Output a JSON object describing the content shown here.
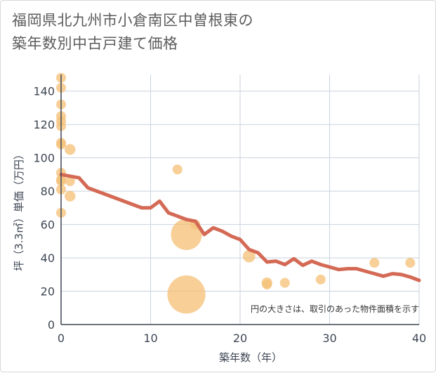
{
  "title": {
    "line1": "福岡県北九州市小倉南区中曽根東の",
    "line2": "築年数別中古戸建て価格"
  },
  "chart_data": {
    "type": "scatter",
    "xlabel": "築年数（年）",
    "ylabel": "坪（3.3㎡）単価（万円）",
    "xlim": [
      0,
      40
    ],
    "ylim": [
      0,
      150
    ],
    "x_ticks": [
      0,
      10,
      20,
      30,
      40
    ],
    "y_ticks": [
      0,
      20,
      40,
      60,
      80,
      100,
      120,
      140
    ],
    "grid": true,
    "note": "円の大きさは、取引のあった物件面積を示す",
    "colors": {
      "points": "#f5c27a",
      "line": "#d46a55",
      "grid": "#c9d3dd"
    },
    "points": [
      {
        "x": 0,
        "y": 148,
        "size": 1
      },
      {
        "x": 0,
        "y": 142,
        "size": 1
      },
      {
        "x": 0,
        "y": 132,
        "size": 1
      },
      {
        "x": 0,
        "y": 125,
        "size": 1
      },
      {
        "x": 0,
        "y": 122,
        "size": 1
      },
      {
        "x": 0,
        "y": 119,
        "size": 1
      },
      {
        "x": 0,
        "y": 109,
        "size": 1
      },
      {
        "x": 0,
        "y": 108,
        "size": 1
      },
      {
        "x": 0,
        "y": 91,
        "size": 1
      },
      {
        "x": 0,
        "y": 87,
        "size": 1
      },
      {
        "x": 0,
        "y": 86,
        "size": 1
      },
      {
        "x": 0,
        "y": 81,
        "size": 1
      },
      {
        "x": 0,
        "y": 67,
        "size": 1
      },
      {
        "x": 1,
        "y": 105,
        "size": 1.2
      },
      {
        "x": 1,
        "y": 86,
        "size": 1
      },
      {
        "x": 1,
        "y": 77,
        "size": 1.2
      },
      {
        "x": 13,
        "y": 93,
        "size": 1
      },
      {
        "x": 14,
        "y": 54,
        "size": 10
      },
      {
        "x": 14,
        "y": 18,
        "size": 15
      },
      {
        "x": 15,
        "y": 60,
        "size": 1
      },
      {
        "x": 21,
        "y": 41,
        "size": 1.6
      },
      {
        "x": 23,
        "y": 25,
        "size": 1.2
      },
      {
        "x": 23,
        "y": 24,
        "size": 1
      },
      {
        "x": 25,
        "y": 25,
        "size": 1
      },
      {
        "x": 29,
        "y": 27,
        "size": 1
      },
      {
        "x": 35,
        "y": 37,
        "size": 1
      },
      {
        "x": 39,
        "y": 37,
        "size": 1
      }
    ],
    "trend": {
      "x": [
        0,
        1,
        2,
        3,
        4,
        5,
        6,
        7,
        8,
        9,
        10,
        11,
        12,
        13,
        14,
        15,
        16,
        17,
        18,
        19,
        20,
        21,
        22,
        23,
        24,
        25,
        26,
        27,
        28,
        29,
        30,
        31,
        32,
        33,
        34,
        35,
        36,
        37,
        38,
        39,
        40
      ],
      "y": [
        90,
        89,
        88,
        82,
        80,
        78,
        76,
        74,
        72,
        70,
        70,
        74,
        67,
        65,
        63,
        62,
        54,
        58,
        56,
        53,
        51,
        45,
        43,
        37.5,
        38,
        36,
        39.5,
        35.5,
        38,
        36,
        34.5,
        33,
        33.5,
        33.5,
        32,
        30.5,
        29,
        30.5,
        30,
        28.5,
        26.5
      ]
    }
  }
}
